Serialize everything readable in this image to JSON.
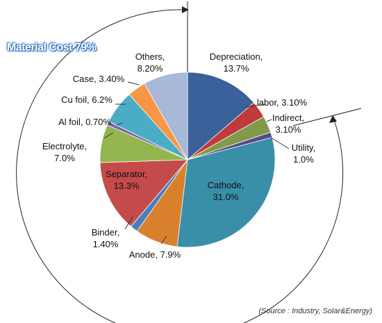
{
  "material_cost_label": "Material Cost  79%",
  "source_note": "(Source : Industry, Solar&Energy)",
  "chart_data": {
    "type": "pie",
    "title": "",
    "start": "12 o'clock, clockwise",
    "slices": [
      {
        "label": "Depreciation,\n13.7%",
        "value": 13.7,
        "color": "#3a6199"
      },
      {
        "label": "labor, 3.10%",
        "value": 3.1,
        "color": "#c0393b"
      },
      {
        "label": "Indirect,\n3.10%",
        "value": 3.1,
        "color": "#7f9a48"
      },
      {
        "label": "Utility,\n1.0%",
        "value": 1.0,
        "color": "#5b4a86"
      },
      {
        "label": "Cathode,\n31.0%",
        "value": 31.0,
        "color": "#3a8fa8"
      },
      {
        "label": "Anode, 7.9%",
        "value": 7.9,
        "color": "#d9802c"
      },
      {
        "label": "Binder,\n1.40%",
        "value": 1.4,
        "color": "#4a7cc0"
      },
      {
        "label": "Separator,\n13.3%",
        "value": 13.3,
        "color": "#c54b4b"
      },
      {
        "label": "Electrolyte,\n7.0%",
        "value": 7.0,
        "color": "#94b54f"
      },
      {
        "label": "Al foil, 0.70%",
        "value": 0.7,
        "color": "#7a64a8"
      },
      {
        "label": "Cu foil, 6.2%",
        "value": 6.2,
        "color": "#4bacc6"
      },
      {
        "label": "Case, 3.40%",
        "value": 3.4,
        "color": "#f79646"
      },
      {
        "label": "Others,\n8.20%",
        "value": 8.2,
        "color": "#a8b8d8"
      }
    ]
  }
}
